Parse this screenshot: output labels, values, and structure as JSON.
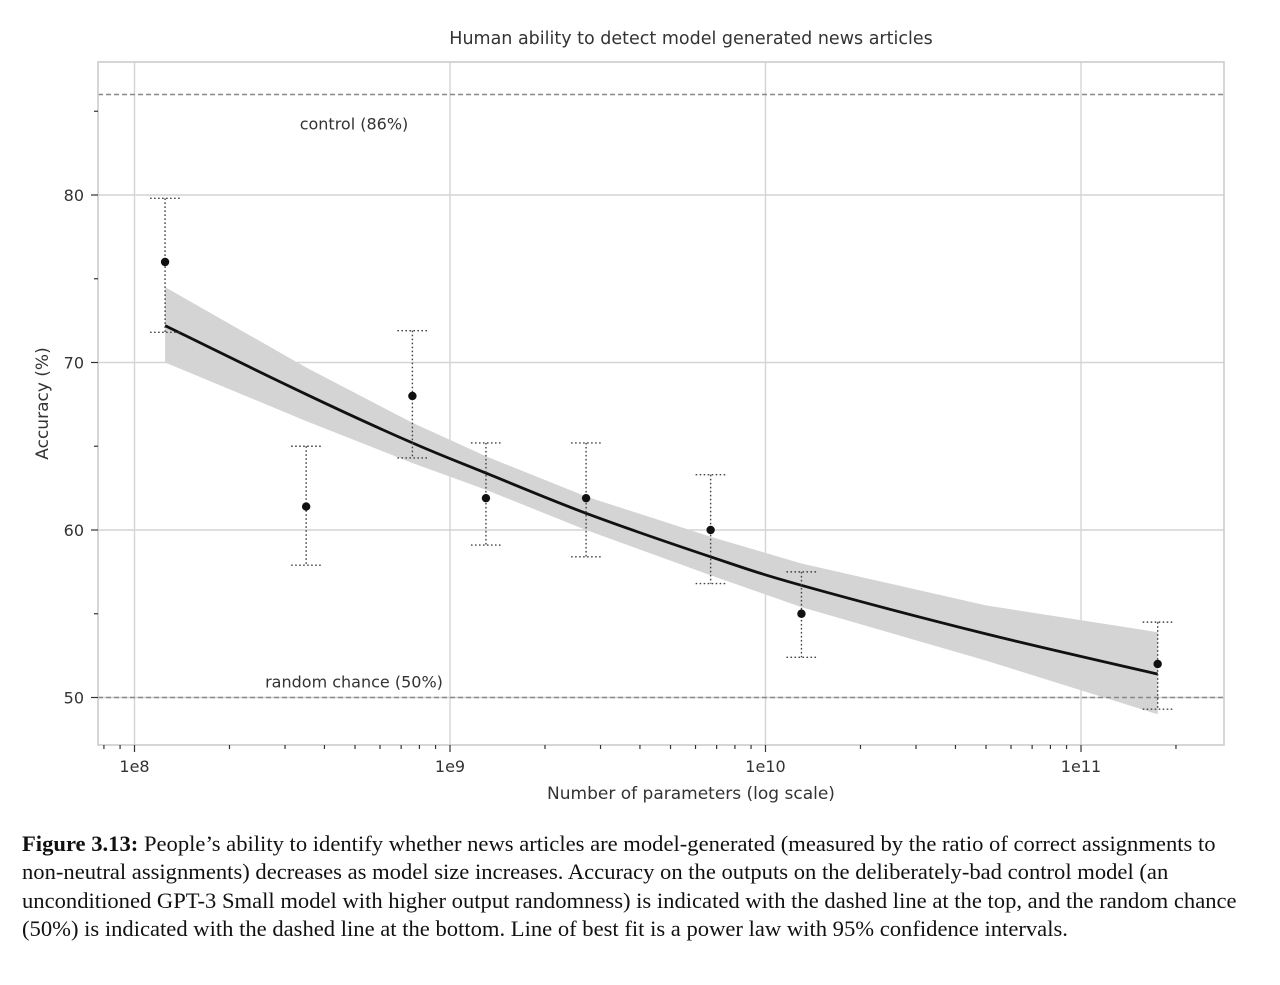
{
  "chart_data": {
    "type": "scatter",
    "title": "Human ability to detect model generated news articles",
    "xlabel": "Number of parameters (log scale)",
    "ylabel": "Accuracy (%)",
    "x_scale": "log",
    "xlim": [
      80000000,
      230000000000
    ],
    "ylim": [
      47,
      87
    ],
    "x_ticks": [
      {
        "value": 100000000,
        "label": "1e8"
      },
      {
        "value": 1000000000,
        "label": "1e9"
      },
      {
        "value": 10000000000,
        "label": "1e10"
      },
      {
        "value": 100000000000,
        "label": "1e11"
      }
    ],
    "y_ticks": [
      {
        "value": 50,
        "label": "50"
      },
      {
        "value": 60,
        "label": "60"
      },
      {
        "value": 70,
        "label": "70"
      },
      {
        "value": 80,
        "label": "80"
      }
    ],
    "grid": true,
    "points": [
      {
        "x": 125000000,
        "y": 76.0,
        "err_low": 71.8,
        "err_high": 79.8
      },
      {
        "x": 350000000,
        "y": 61.4,
        "err_low": 57.9,
        "err_high": 65.0
      },
      {
        "x": 760000000,
        "y": 68.0,
        "err_low": 64.3,
        "err_high": 71.9
      },
      {
        "x": 1300000000,
        "y": 61.9,
        "err_low": 59.1,
        "err_high": 65.2
      },
      {
        "x": 2700000000,
        "y": 61.9,
        "err_low": 58.4,
        "err_high": 65.2
      },
      {
        "x": 6700000000,
        "y": 60.0,
        "err_low": 56.8,
        "err_high": 63.3
      },
      {
        "x": 13000000000,
        "y": 55.0,
        "err_low": 52.4,
        "err_high": 57.5
      },
      {
        "x": 175000000000,
        "y": 52.0,
        "err_low": 49.3,
        "err_high": 54.5
      }
    ],
    "fit_line": {
      "type": "power_law",
      "x": [
        125000000,
        350000000,
        760000000,
        1300000000,
        2700000000,
        6700000000,
        13000000000,
        50000000000,
        175000000000
      ],
      "y": [
        72.2,
        68.1,
        65.2,
        63.4,
        61.0,
        58.4,
        56.7,
        53.8,
        51.4
      ],
      "ci_lower": [
        70.0,
        66.5,
        64.0,
        62.4,
        60.0,
        57.3,
        55.4,
        52.2,
        49.0
      ],
      "ci_upper": [
        74.5,
        69.7,
        66.4,
        64.4,
        62.0,
        59.6,
        58.0,
        55.5,
        53.9
      ]
    },
    "reference_lines": [
      {
        "y": 86,
        "label": "control (86%)"
      },
      {
        "y": 50,
        "label": "random chance (50%)"
      }
    ]
  },
  "caption": {
    "label": "Figure 3.13:",
    "text": " People’s ability to identify whether news articles are model-generated (measured by the ratio of correct assignments to non-neutral assignments) decreases as model size increases. Accuracy on the outputs on the deliberately-bad control model (an unconditioned GPT-3 Small model with higher output randomness) is indicated with the dashed line at the top, and the random chance (50%) is indicated with the dashed line at the bottom. Line of best fit is a power law with 95% confidence intervals."
  },
  "colors": {
    "frame": "#cccccc",
    "grid": "#d4d4d4",
    "fit_line": "#111111",
    "ci_band": "#d4d4d4",
    "reference_line": "#888888",
    "marker": "#111111",
    "error_bar": "#444444",
    "text": "#333333"
  }
}
